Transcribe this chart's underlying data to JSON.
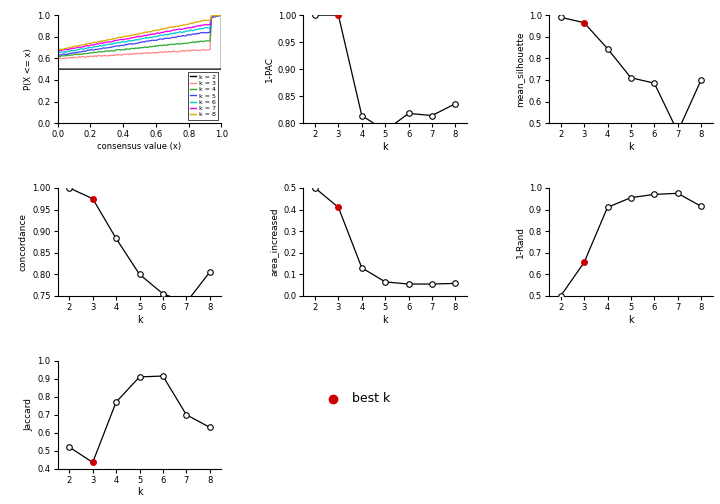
{
  "k_values": [
    2,
    3,
    4,
    5,
    6,
    7,
    8
  ],
  "best_k": 3,
  "one_pac": {
    "values": [
      1.0,
      1.0,
      0.814,
      0.786,
      0.818,
      0.814,
      0.836
    ],
    "ylabel": "1-PAC",
    "ylim": [
      0.8,
      1.0
    ],
    "yticks": [
      0.8,
      0.85,
      0.9,
      0.95,
      1.0
    ]
  },
  "mean_silhouette": {
    "values": [
      0.99,
      0.965,
      0.845,
      0.71,
      0.685,
      0.46,
      0.7
    ],
    "ylabel": "mean_silhouette",
    "ylim": [
      0.5,
      1.0
    ],
    "yticks": [
      0.5,
      0.6,
      0.7,
      0.8,
      0.9,
      1.0
    ]
  },
  "concordance": {
    "values": [
      1.0,
      0.975,
      0.883,
      0.8,
      0.755,
      0.735,
      0.805
    ],
    "ylabel": "concordance",
    "ylim": [
      0.75,
      1.0
    ],
    "yticks": [
      0.75,
      0.8,
      0.85,
      0.9,
      0.95,
      1.0
    ]
  },
  "area_increased": {
    "values": [
      0.5,
      0.41,
      0.13,
      0.065,
      0.055,
      0.055,
      0.058
    ],
    "ylabel": "area_increased",
    "ylim": [
      0.0,
      0.5
    ],
    "yticks": [
      0.0,
      0.1,
      0.2,
      0.3,
      0.4,
      0.5
    ]
  },
  "rand": {
    "values": [
      0.5,
      0.655,
      0.91,
      0.955,
      0.97,
      0.975,
      0.915
    ],
    "ylabel": "1-Rand",
    "ylim": [
      0.5,
      1.0
    ],
    "yticks": [
      0.5,
      0.6,
      0.7,
      0.8,
      0.9,
      1.0
    ]
  },
  "jaccard": {
    "values": [
      0.52,
      0.435,
      0.77,
      0.91,
      0.915,
      0.7,
      0.63
    ],
    "ylabel": "Jaccard",
    "ylim": [
      0.4,
      1.0
    ],
    "yticks": [
      0.4,
      0.5,
      0.6,
      0.7,
      0.8,
      0.9,
      1.0
    ]
  },
  "ecdf_colors": [
    "#000000",
    "#FF8888",
    "#33AA33",
    "#4444FF",
    "#00CCCC",
    "#EE00EE",
    "#DDAA00"
  ],
  "ecdf_labels": [
    "k = 2",
    "k = 3",
    "k = 4",
    "k = 5",
    "k = 6",
    "k = 7",
    "k = 8"
  ],
  "ecdf_starts": [
    0.5,
    0.6,
    0.62,
    0.63,
    0.65,
    0.67,
    0.68
  ],
  "ecdf_ends": [
    0.5,
    0.68,
    0.76,
    0.84,
    0.88,
    0.91,
    0.95
  ],
  "bg_color": "#FFFFFF",
  "best_dot_color": "#CC0000"
}
